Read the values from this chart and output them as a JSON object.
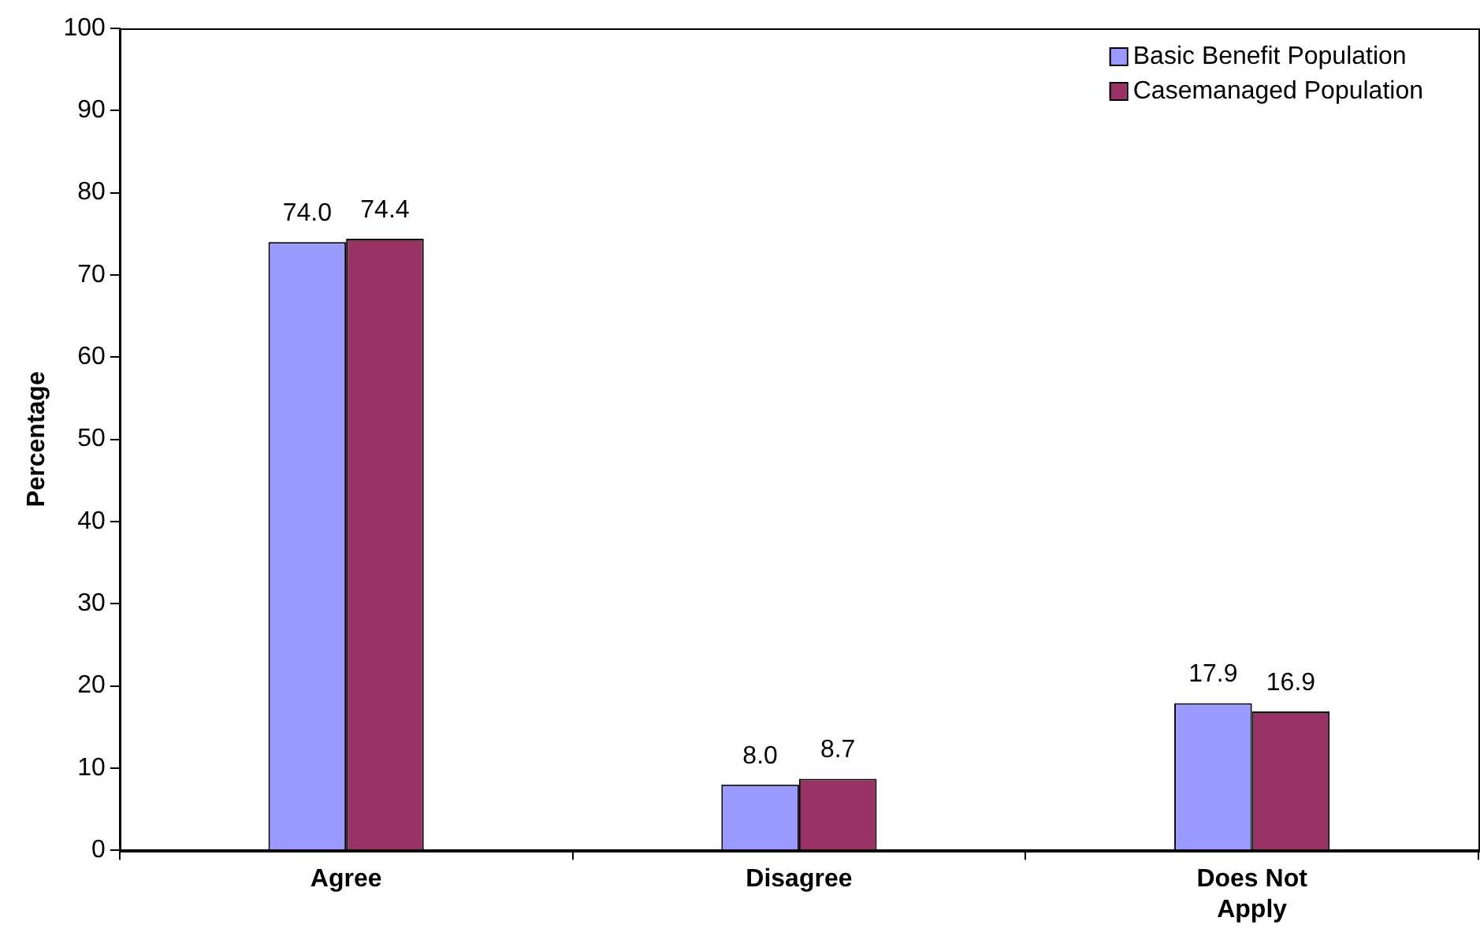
{
  "chart_data": {
    "type": "bar",
    "ylabel": "Percentage",
    "categories": [
      "Agree",
      "Disagree",
      "Does Not Apply"
    ],
    "series": [
      {
        "name": "Basic Benefit Population",
        "color": "#9999ff",
        "values": [
          74.0,
          8.0,
          17.9
        ],
        "value_labels": [
          "74.0",
          "8.0",
          "17.9"
        ]
      },
      {
        "name": "Casemanaged Population",
        "color": "#993366",
        "values": [
          74.4,
          8.7,
          16.9
        ],
        "value_labels": [
          "74.4",
          "8.7",
          "16.9"
        ]
      }
    ],
    "ylim": [
      0,
      100
    ],
    "yticks": [
      0,
      10,
      20,
      30,
      40,
      50,
      60,
      70,
      80,
      90,
      100
    ],
    "grid": false,
    "legend": "top right"
  }
}
